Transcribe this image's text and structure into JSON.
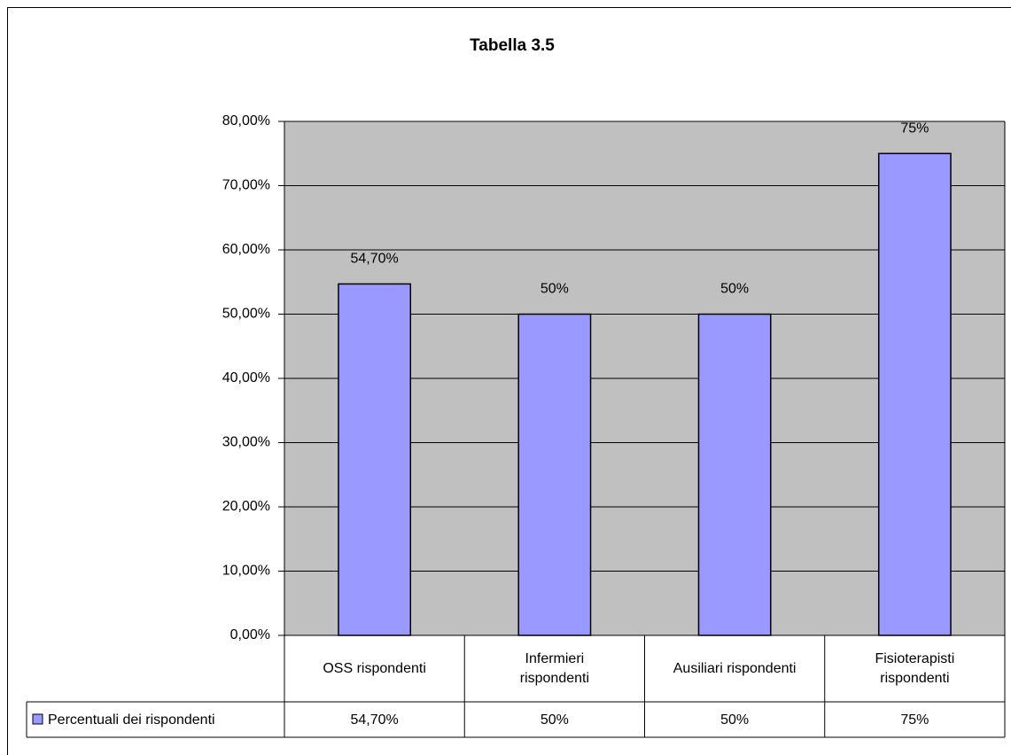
{
  "chart_data": {
    "type": "bar",
    "title": "Tabella 3.5",
    "categories": [
      "OSS rispondenti",
      "Infermieri rispondenti",
      "Ausiliari rispondenti",
      "Fisioterapisti rispondenti"
    ],
    "series": [
      {
        "name": "Percentuali dei rispondenti",
        "color": "#9999ff",
        "values": [
          54.7,
          50,
          50,
          75
        ],
        "value_labels": [
          "54,70%",
          "50%",
          "50%",
          "75%"
        ]
      }
    ],
    "ylim": [
      0,
      80
    ],
    "yticks": [
      {
        "value": 0,
        "label": "0,00%"
      },
      {
        "value": 10,
        "label": "10,00%"
      },
      {
        "value": 20,
        "label": "20,00%"
      },
      {
        "value": 30,
        "label": "30,00%"
      },
      {
        "value": 40,
        "label": "40,00%"
      },
      {
        "value": 50,
        "label": "50,00%"
      },
      {
        "value": 60,
        "label": "60,00%"
      },
      {
        "value": 70,
        "label": "70,00%"
      },
      {
        "value": 80,
        "label": "80,00%"
      }
    ],
    "grid": true,
    "plot_background": "#c0c0c0"
  }
}
